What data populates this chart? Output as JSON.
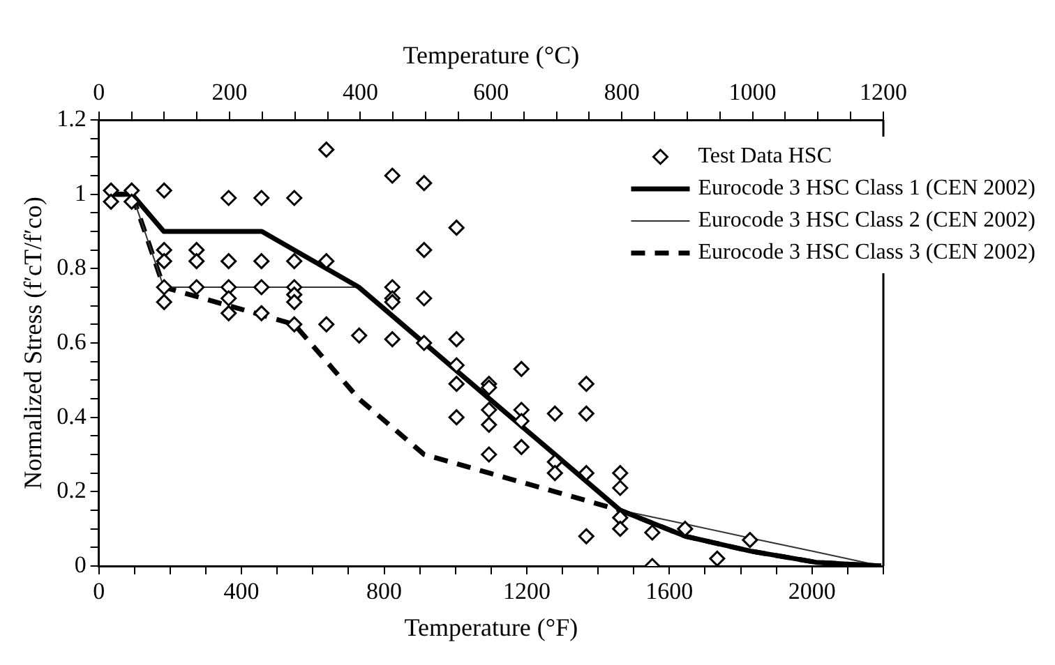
{
  "chart_data": {
    "type": "scatter",
    "xlabel": "Temperature (°F)",
    "x2label": "Temperature (°C)",
    "ylabel": "Normalized Stress (f′cT/f′co)",
    "xlim": [
      0,
      2200
    ],
    "xticks": [
      0,
      {
        "value": 100,
        "label": null
      },
      {
        "value": 200,
        "label": null
      },
      {
        "value": 300,
        "label": null
      },
      400,
      {
        "value": 500,
        "label": null
      },
      {
        "value": 600,
        "label": null
      },
      {
        "value": 700,
        "label": null
      },
      800,
      {
        "value": 900,
        "label": null
      },
      {
        "value": 1000,
        "label": null
      },
      {
        "value": 1100,
        "label": null
      },
      1200,
      {
        "value": 1300,
        "label": null
      },
      {
        "value": 1400,
        "label": null
      },
      {
        "value": 1500,
        "label": null
      },
      1600,
      {
        "value": 1700,
        "label": null
      },
      {
        "value": 1800,
        "label": null
      },
      {
        "value": 1900,
        "label": null
      },
      2000,
      {
        "value": 2100,
        "label": null
      },
      {
        "value": 2200,
        "label": null
      }
    ],
    "x2lim": [
      0,
      1200
    ],
    "x2ticks": [
      0,
      {
        "value": 50,
        "label": null
      },
      {
        "value": 100,
        "label": null
      },
      {
        "value": 150,
        "label": null
      },
      200,
      {
        "value": 250,
        "label": null
      },
      {
        "value": 300,
        "label": null
      },
      {
        "value": 350,
        "label": null
      },
      400,
      {
        "value": 450,
        "label": null
      },
      {
        "value": 500,
        "label": null
      },
      {
        "value": 550,
        "label": null
      },
      600,
      {
        "value": 650,
        "label": null
      },
      {
        "value": 700,
        "label": null
      },
      {
        "value": 750,
        "label": null
      },
      800,
      {
        "value": 850,
        "label": null
      },
      {
        "value": 900,
        "label": null
      },
      {
        "value": 950,
        "label": null
      },
      1000,
      {
        "value": 1050,
        "label": null
      },
      {
        "value": 1100,
        "label": null
      },
      {
        "value": 1150,
        "label": null
      },
      1200
    ],
    "ylim": [
      0,
      1.2
    ],
    "yticks": [
      0,
      {
        "value": 0.05,
        "label": null
      },
      {
        "value": 0.1,
        "label": null
      },
      {
        "value": 0.15,
        "label": null
      },
      0.2,
      {
        "value": 0.25,
        "label": null
      },
      {
        "value": 0.3,
        "label": null
      },
      {
        "value": 0.35,
        "label": null
      },
      0.4,
      {
        "value": 0.45,
        "label": null
      },
      {
        "value": 0.5,
        "label": null
      },
      {
        "value": 0.55,
        "label": null
      },
      0.6,
      {
        "value": 0.65,
        "label": null
      },
      {
        "value": 0.7,
        "label": null
      },
      {
        "value": 0.75,
        "label": null
      },
      0.8,
      {
        "value": 0.85,
        "label": null
      },
      {
        "value": 0.9,
        "label": null
      },
      {
        "value": 0.95,
        "label": null
      },
      1,
      {
        "value": 1.05,
        "label": null
      },
      {
        "value": 1.1,
        "label": null
      },
      {
        "value": 1.15,
        "label": null
      },
      1.2
    ],
    "grid": false,
    "legend": "top right",
    "series": [
      {
        "name": "Test Data HSC",
        "marker": "diamond",
        "color": "#000000",
        "x": [
          34,
          34,
          92,
          92,
          183,
          638,
          823,
          912,
          364,
          456,
          548,
          1003,
          183,
          183,
          274,
          274,
          364,
          456,
          548,
          638,
          912,
          183,
          183,
          274,
          364,
          364,
          364,
          456,
          456,
          548,
          548,
          548,
          548,
          638,
          730,
          823,
          823,
          823,
          912,
          823,
          912,
          1003,
          1003,
          1185,
          1003,
          1003,
          1094,
          1094,
          1094,
          1094,
          1094,
          1185,
          1185,
          1185,
          1279,
          1279,
          1279,
          1367,
          1367,
          1367,
          1367,
          1462,
          1462,
          1462,
          1462,
          1552,
          1552,
          1644,
          1734,
          1826
        ],
        "values": [
          1.01,
          0.98,
          1.01,
          0.98,
          1.01,
          1.12,
          1.05,
          1.03,
          0.99,
          0.99,
          0.99,
          0.91,
          0.85,
          0.82,
          0.85,
          0.82,
          0.82,
          0.82,
          0.82,
          0.82,
          0.85,
          0.75,
          0.71,
          0.75,
          0.75,
          0.72,
          0.68,
          0.75,
          0.68,
          0.75,
          0.73,
          0.71,
          0.65,
          0.65,
          0.62,
          0.75,
          0.72,
          0.71,
          0.72,
          0.61,
          0.6,
          0.61,
          0.54,
          0.53,
          0.49,
          0.4,
          0.49,
          0.48,
          0.42,
          0.38,
          0.3,
          0.42,
          0.39,
          0.32,
          0.41,
          0.28,
          0.25,
          0.49,
          0.41,
          0.25,
          0.08,
          0.25,
          0.21,
          0.13,
          0.1,
          0.09,
          0,
          0.1,
          0.02,
          0.07
        ]
      },
      {
        "name": "Eurocode 3 HSC Class 1 (CEN 2002)",
        "type": "line",
        "marker": "none",
        "line_style": "solid",
        "color": "#000000",
        "x": [
          32,
          93,
          182,
          457,
          729,
          912,
          1095,
          1279,
          1462,
          1645,
          1828,
          2011,
          2194
        ],
        "values": [
          1,
          1,
          0.9,
          0.9,
          0.75,
          0.6,
          0.45,
          0.3,
          0.15,
          0.08,
          0.04,
          0.01,
          0
        ]
      },
      {
        "name": "Eurocode 3 HSC Class 2 (CEN 2002)",
        "type": "line",
        "marker": "none",
        "line_style": "solid",
        "color": "#333333",
        "x": [
          32,
          93,
          182,
          457,
          729,
          912,
          1095,
          1279,
          1462,
          1645,
          1828,
          2011,
          2194
        ],
        "values": [
          1,
          1,
          0.75,
          0.75,
          0.75,
          0.6,
          0.45,
          0.3,
          0.15,
          0.113,
          0.075,
          0.038,
          0
        ]
      },
      {
        "name": "Eurocode 3 HSC Class 3 (CEN 2002)",
        "type": "line",
        "marker": "none",
        "line_style": "dashed",
        "color": "#000000",
        "x": [
          32,
          93,
          182,
          365,
          548,
          729,
          912,
          1095,
          1279,
          1462,
          1645,
          1828,
          2011,
          2194
        ],
        "values": [
          1,
          1,
          0.75,
          0.7,
          0.65,
          0.45,
          0.3,
          0.25,
          0.2,
          0.15,
          0.08,
          0.04,
          0.01,
          0
        ]
      }
    ]
  }
}
